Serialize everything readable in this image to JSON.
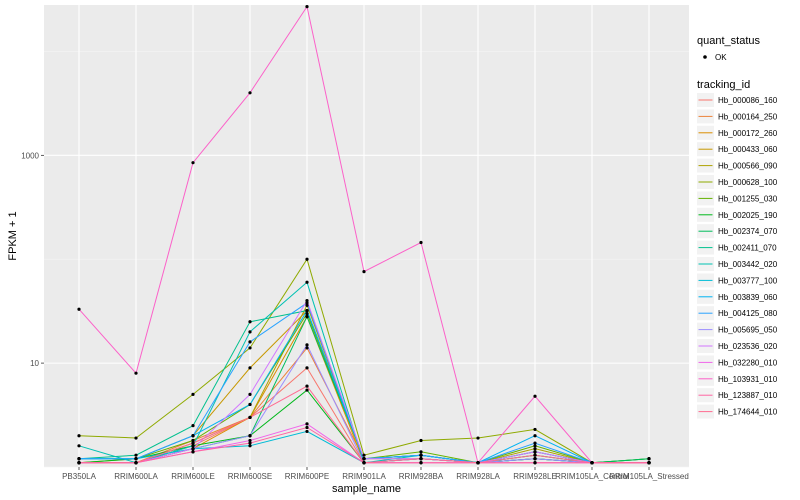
{
  "chart_data": {
    "type": "line",
    "title": "",
    "xlabel": "sample_name",
    "ylabel": "FPKM + 1",
    "y_scale": "log10",
    "ylim": [
      1,
      28000
    ],
    "y_ticks": [
      {
        "value": 10,
        "label": "10"
      },
      {
        "value": 1000,
        "label": "1000"
      }
    ],
    "categories": [
      "PB350LA",
      "RRIM600LA",
      "RRIM600LE",
      "RRIM600SE",
      "RRIM600PE",
      "RRIM901LA",
      "RRIM928BA",
      "RRIM928LA",
      "RRIM928LE",
      "RRIM105LA_Control",
      "RRIM105LA_Stressed"
    ],
    "grid": true,
    "legend_position": "right",
    "legend": {
      "shape_title": "quant_status",
      "shape_entries": [
        "OK"
      ],
      "color_title": "tracking_id"
    },
    "series": [
      {
        "name": "Hb_000086_160",
        "color": "#F8766D",
        "values": [
          1.1,
          1.1,
          1.6,
          3.0,
          9.0,
          1.1,
          1.1,
          1.1,
          1.1,
          1.1,
          1.1
        ]
      },
      {
        "name": "Hb_000164_250",
        "color": "#EC8239",
        "values": [
          1.1,
          1.1,
          1.8,
          3.0,
          14.0,
          1.2,
          1.2,
          1.1,
          1.2,
          1.1,
          1.1
        ]
      },
      {
        "name": "Hb_000172_260",
        "color": "#DB8E00",
        "values": [
          1.1,
          1.1,
          1.5,
          3.0,
          28.0,
          1.1,
          1.2,
          1.1,
          1.2,
          1.1,
          1.1
        ]
      },
      {
        "name": "Hb_000433_060",
        "color": "#C79800",
        "values": [
          1.1,
          1.2,
          2.0,
          9.0,
          32.0,
          1.2,
          1.3,
          1.1,
          1.3,
          1.1,
          1.1
        ]
      },
      {
        "name": "Hb_000566_090",
        "color": "#AEA200",
        "values": [
          1.1,
          1.1,
          1.7,
          3.0,
          36.0,
          1.2,
          1.3,
          1.1,
          1.5,
          1.1,
          1.1
        ]
      },
      {
        "name": "Hb_000628_100",
        "color": "#8FAA00",
        "values": [
          2.0,
          1.9,
          5.0,
          14.0,
          100.0,
          1.3,
          1.8,
          1.9,
          2.3,
          1.1,
          1.1
        ]
      },
      {
        "name": "Hb_001255_030",
        "color": "#64B200",
        "values": [
          1.2,
          1.2,
          1.8,
          4.0,
          30.0,
          1.2,
          1.4,
          1.1,
          1.6,
          1.1,
          1.2
        ]
      },
      {
        "name": "Hb_002025_190",
        "color": "#00B81B",
        "values": [
          1.1,
          1.2,
          1.6,
          2.0,
          5.5,
          1.1,
          1.2,
          1.1,
          1.2,
          1.1,
          1.2
        ]
      },
      {
        "name": "Hb_002374_070",
        "color": "#00BD5C",
        "values": [
          1.1,
          1.1,
          1.5,
          2.0,
          28.0,
          1.2,
          1.3,
          1.1,
          1.4,
          1.1,
          1.2
        ]
      },
      {
        "name": "Hb_002411_070",
        "color": "#00C08E",
        "values": [
          1.2,
          1.3,
          2.5,
          25.0,
          32.0,
          1.2,
          1.3,
          1.1,
          1.3,
          1.1,
          1.1
        ]
      },
      {
        "name": "Hb_003442_020",
        "color": "#00C1B2",
        "values": [
          1.6,
          1.1,
          1.6,
          20.0,
          60.0,
          1.1,
          1.3,
          1.1,
          1.4,
          1.1,
          1.1
        ]
      },
      {
        "name": "Hb_003777_100",
        "color": "#00BCD6",
        "values": [
          1.2,
          1.2,
          1.5,
          1.6,
          2.2,
          1.1,
          1.2,
          1.1,
          1.2,
          1.1,
          1.1
        ]
      },
      {
        "name": "Hb_003839_060",
        "color": "#00B3F2",
        "values": [
          1.2,
          1.2,
          2.0,
          4.0,
          32.0,
          1.2,
          1.3,
          1.1,
          2.0,
          1.1,
          1.1
        ]
      },
      {
        "name": "Hb_004125_080",
        "color": "#29A3FF",
        "values": [
          1.2,
          1.2,
          2.0,
          16.0,
          38.0,
          1.2,
          1.3,
          1.1,
          1.7,
          1.1,
          1.1
        ]
      },
      {
        "name": "Hb_005695_050",
        "color": "#9C8DFF",
        "values": [
          1.1,
          1.1,
          1.5,
          2.0,
          15.0,
          1.1,
          1.2,
          1.1,
          1.2,
          1.1,
          1.1
        ]
      },
      {
        "name": "Hb_023536_020",
        "color": "#D277FF",
        "values": [
          1.1,
          1.1,
          1.5,
          5.0,
          40.0,
          1.2,
          1.2,
          1.1,
          1.4,
          1.1,
          1.1
        ]
      },
      {
        "name": "Hb_032280_010",
        "color": "#F066EA",
        "values": [
          1.1,
          1.1,
          1.4,
          1.8,
          2.6,
          1.1,
          1.1,
          1.1,
          1.1,
          1.1,
          1.1
        ]
      },
      {
        "name": "Hb_103931_010",
        "color": "#FC61C9",
        "values": [
          33.0,
          8.0,
          850.0,
          4000.0,
          27000.0,
          76.0,
          145.0,
          1.1,
          4.8,
          1.1,
          1.1
        ]
      },
      {
        "name": "Hb_123887_010",
        "color": "#FF65A3",
        "values": [
          1.1,
          1.1,
          1.4,
          1.7,
          2.4,
          1.1,
          1.1,
          1.1,
          1.1,
          1.1,
          1.1
        ]
      },
      {
        "name": "Hb_174644_010",
        "color": "#FF6C91",
        "values": [
          1.1,
          1.1,
          1.7,
          3.0,
          6.0,
          1.1,
          1.2,
          1.1,
          1.3,
          1.1,
          1.1
        ]
      }
    ]
  }
}
